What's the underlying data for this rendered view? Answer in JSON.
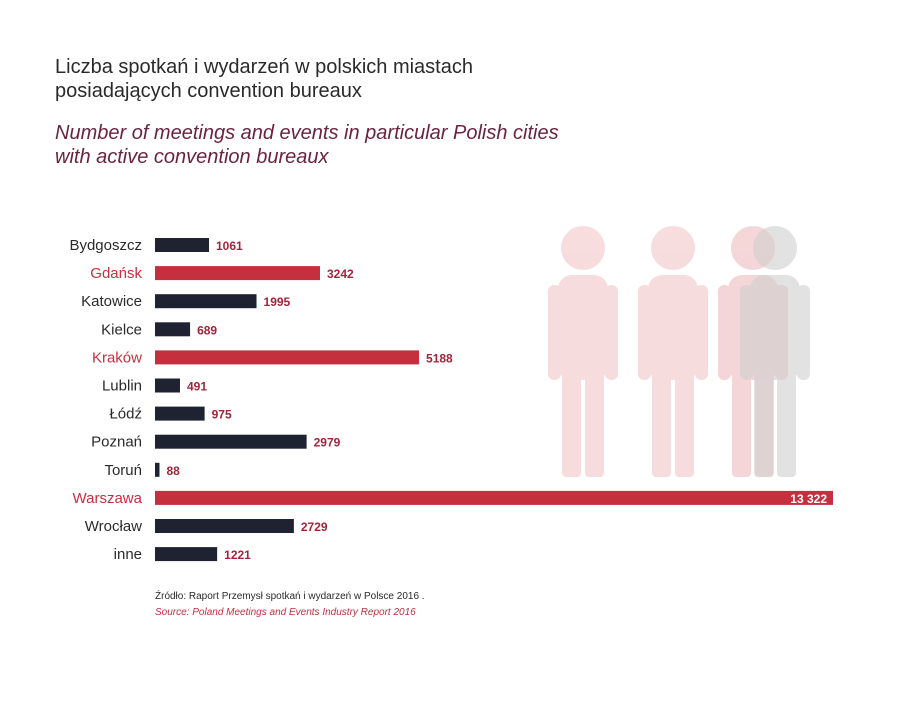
{
  "title_pl_line1": "Liczba spotkań i wydarzeń w polskich miastach",
  "title_pl_line2": "posiadających convention bureaux",
  "title_en_line1": "Number of meetings and events in particular Polish cities",
  "title_en_line2": "with active convention bureaux",
  "source_pl": "Źródło: Raport Przemysł spotkań i wydarzeń w Polsce 2016 .",
  "source_en": "Source: Poland Meetings and Events Industry Report 2016",
  "colors": {
    "dark": "#1f2230",
    "highlight": "#c5303e",
    "label_dark": "#2a2a2a",
    "value_text": "#a3243a",
    "people_pink": "#f6d9da",
    "people_gray": "#d4d4d4"
  },
  "icons": [
    "person-icon",
    "person-icon",
    "person-icon",
    "person-icon"
  ],
  "chart_data": {
    "type": "bar",
    "orientation": "horizontal",
    "categories": [
      "Bydgoszcz",
      "Gdańsk",
      "Katowice",
      "Kielce",
      "Kraków",
      "Lublin",
      "Łódź",
      "Poznań",
      "Toruń",
      "Warszawa",
      "Wrocław",
      "inne"
    ],
    "values": [
      1061,
      3242,
      1995,
      689,
      5188,
      491,
      975,
      2979,
      88,
      13322,
      2729,
      1221
    ],
    "value_labels": [
      "1061",
      "3242",
      "1995",
      "689",
      "5188",
      "491",
      "975",
      "2979",
      "88",
      "13 322",
      "2729",
      "1221"
    ],
    "highlighted": [
      false,
      true,
      false,
      false,
      true,
      false,
      false,
      false,
      false,
      true,
      false,
      false
    ],
    "xlim": [
      0,
      13322
    ],
    "grid": false,
    "legend": "none"
  }
}
